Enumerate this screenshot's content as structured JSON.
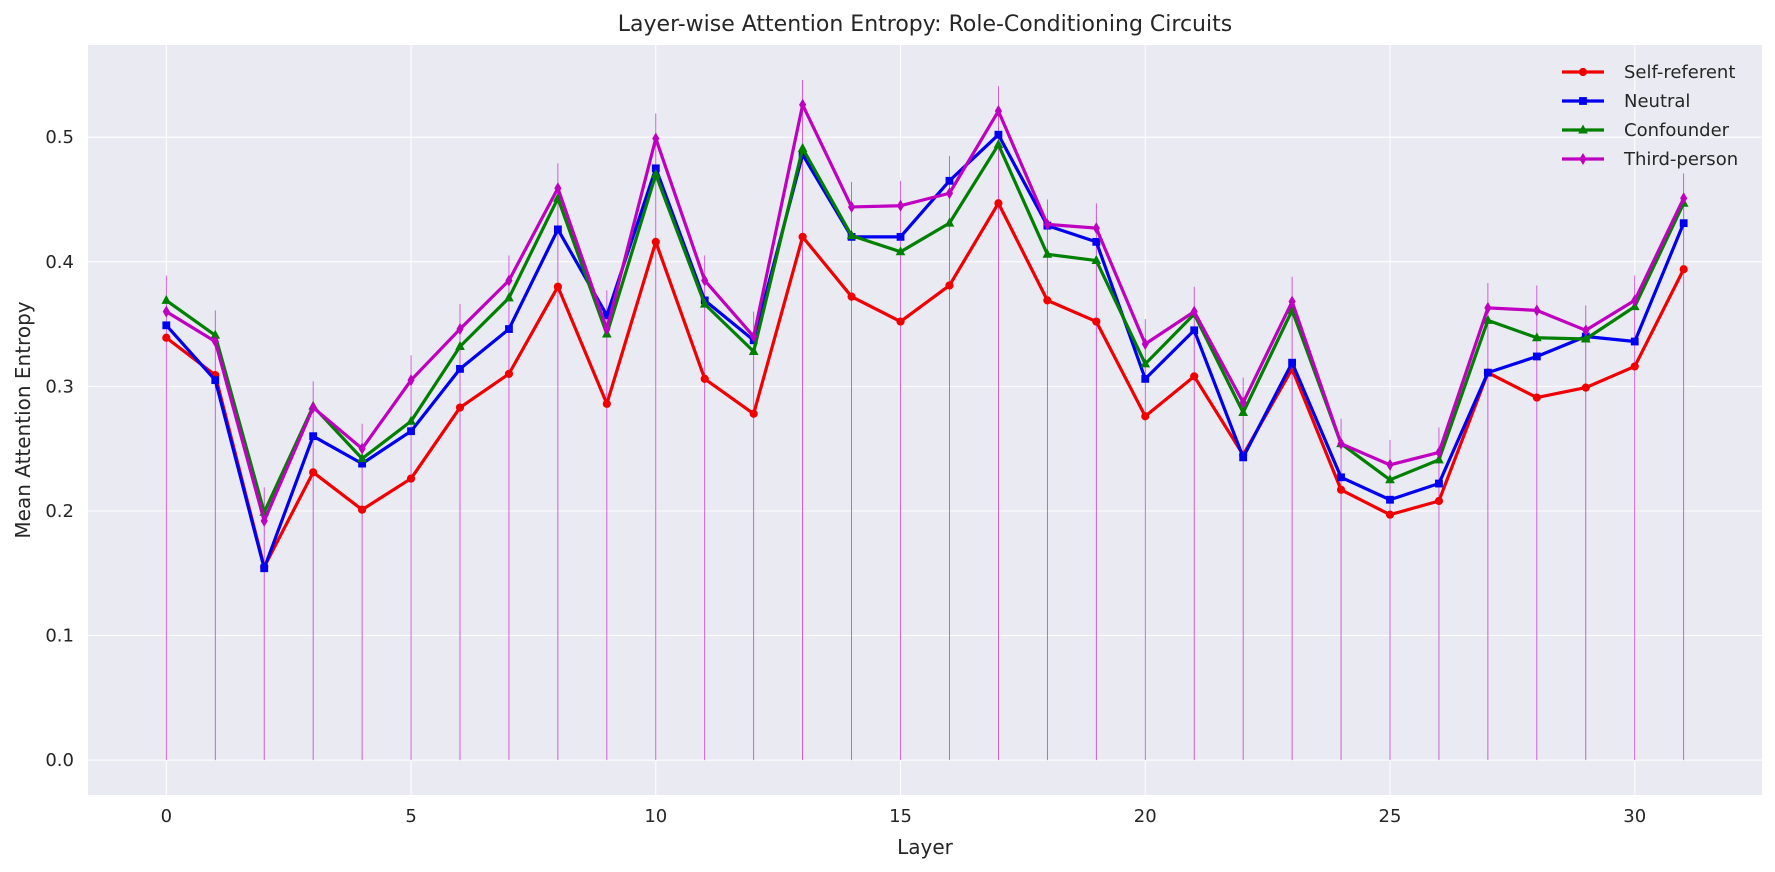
{
  "chart_data": {
    "type": "line",
    "title": "Layer-wise Attention Entropy: Role-Conditioning Circuits",
    "xlabel": "Layer",
    "ylabel": "Mean Attention Entropy",
    "xlim": [
      -1.6,
      32.6
    ],
    "ylim": [
      -0.028,
      0.574
    ],
    "xticks": [
      0,
      5,
      10,
      15,
      20,
      25,
      30
    ],
    "yticks": [
      0.0,
      0.1,
      0.2,
      0.3,
      0.4,
      0.5
    ],
    "grid": true,
    "legend_position": "top-right",
    "x": [
      0,
      1,
      2,
      3,
      4,
      5,
      6,
      7,
      8,
      9,
      10,
      11,
      12,
      13,
      14,
      15,
      16,
      17,
      18,
      19,
      20,
      21,
      22,
      23,
      24,
      25,
      26,
      27,
      28,
      29,
      30,
      31
    ],
    "series": [
      {
        "name": "Self-referent",
        "color": "#f00000",
        "marker": "circle",
        "values": [
          0.339,
          0.309,
          0.155,
          0.231,
          0.201,
          0.226,
          0.283,
          0.31,
          0.38,
          0.286,
          0.416,
          0.306,
          0.278,
          0.42,
          0.372,
          0.352,
          0.381,
          0.447,
          0.369,
          0.352,
          0.276,
          0.308,
          0.245,
          0.314,
          0.217,
          0.197,
          0.208,
          0.311,
          0.291,
          0.299,
          0.316,
          0.394
        ]
      },
      {
        "name": "Neutral",
        "color": "#0000f0",
        "marker": "square",
        "values": [
          0.349,
          0.305,
          0.154,
          0.26,
          0.238,
          0.264,
          0.314,
          0.346,
          0.426,
          0.357,
          0.475,
          0.369,
          0.337,
          0.486,
          0.42,
          0.42,
          0.465,
          0.502,
          0.429,
          0.416,
          0.306,
          0.345,
          0.243,
          0.319,
          0.227,
          0.209,
          0.222,
          0.311,
          0.324,
          0.34,
          0.336,
          0.431
        ]
      },
      {
        "name": "Confounder",
        "color": "#008000",
        "marker": "triangle",
        "values": [
          0.369,
          0.341,
          0.199,
          0.284,
          0.242,
          0.272,
          0.332,
          0.371,
          0.451,
          0.342,
          0.47,
          0.366,
          0.328,
          0.491,
          0.421,
          0.408,
          0.431,
          0.494,
          0.406,
          0.401,
          0.318,
          0.358,
          0.279,
          0.361,
          0.254,
          0.225,
          0.241,
          0.353,
          0.339,
          0.338,
          0.364,
          0.447
        ]
      },
      {
        "name": "Third-person",
        "color": "#c000c0",
        "marker": "diamond",
        "values": [
          0.36,
          0.336,
          0.192,
          0.283,
          0.25,
          0.305,
          0.346,
          0.385,
          0.459,
          0.346,
          0.499,
          0.385,
          0.34,
          0.526,
          0.444,
          0.445,
          0.455,
          0.521,
          0.43,
          0.427,
          0.334,
          0.36,
          0.287,
          0.368,
          0.254,
          0.237,
          0.247,
          0.363,
          0.361,
          0.345,
          0.369,
          0.451
        ]
      }
    ]
  }
}
